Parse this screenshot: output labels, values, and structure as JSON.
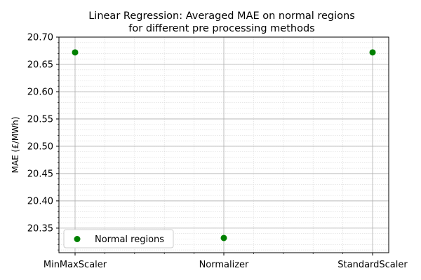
{
  "chart_data": {
    "type": "scatter",
    "title": [
      "Linear Regression: Averaged MAE on normal regions",
      "for different pre processing methods"
    ],
    "xlabel": "",
    "ylabel": "MAE (£/MWh)",
    "categories": [
      "MinMaxScaler",
      "Normalizer",
      "StandardScaler"
    ],
    "series": [
      {
        "name": "Normal regions",
        "color": "#008000",
        "values": [
          20.672,
          20.332,
          20.672
        ]
      }
    ],
    "ylim": [
      20.305,
      20.7
    ],
    "yticks": [
      "20.35",
      "20.40",
      "20.45",
      "20.50",
      "20.55",
      "20.60",
      "20.65",
      "20.70"
    ],
    "ytick_values": [
      20.35,
      20.4,
      20.45,
      20.5,
      20.55,
      20.6,
      20.65,
      20.7
    ],
    "grid": true,
    "legend_position": "lower-left"
  }
}
